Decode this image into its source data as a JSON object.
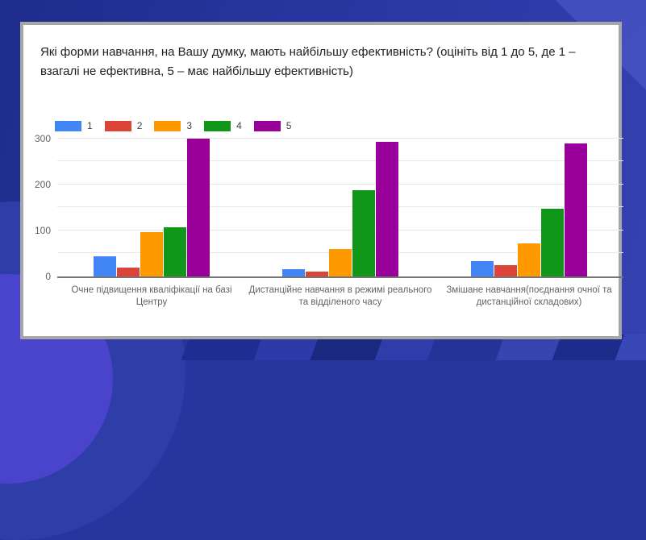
{
  "slide": {
    "palette": {
      "background_base": "#27359e",
      "background_dark": "#1e2c8c",
      "background_light_corner": "#4a55c6",
      "background_glow": "#4a43cb",
      "card_background": "#ffffff",
      "card_border": "#a6a6a6"
    }
  },
  "chart_data": {
    "type": "bar",
    "title": "Які форми навчання, на Вашу думку, мають найбільшу ефективність? (оцініть від 1 до 5, де 1 – взагалі не ефективна, 5 – має найбільшу ефективність)",
    "categories": [
      "Очне підвищення кваліфікації на базі Центру",
      "Дистанційне навчання в режимі реального та відділеного часу",
      "Змішане навчання(поєднання очної та дистанційної складових)"
    ],
    "series": [
      {
        "name": "1",
        "color": "#4285F4",
        "values": [
          43,
          16,
          34
        ]
      },
      {
        "name": "2",
        "color": "#DB4437",
        "values": [
          20,
          10,
          25
        ]
      },
      {
        "name": "3",
        "color": "#FF9900",
        "values": [
          96,
          60,
          72
        ]
      },
      {
        "name": "4",
        "color": "#109618",
        "values": [
          107,
          187,
          147
        ]
      },
      {
        "name": "5",
        "color": "#990099",
        "values": [
          300,
          292,
          289
        ]
      }
    ],
    "xlabel": "",
    "ylabel": "",
    "y_ticks": [
      0,
      100,
      200,
      300
    ],
    "y_minor_step": 50,
    "ylim": [
      0,
      315
    ],
    "grid": true,
    "legend_position": "top-left"
  }
}
